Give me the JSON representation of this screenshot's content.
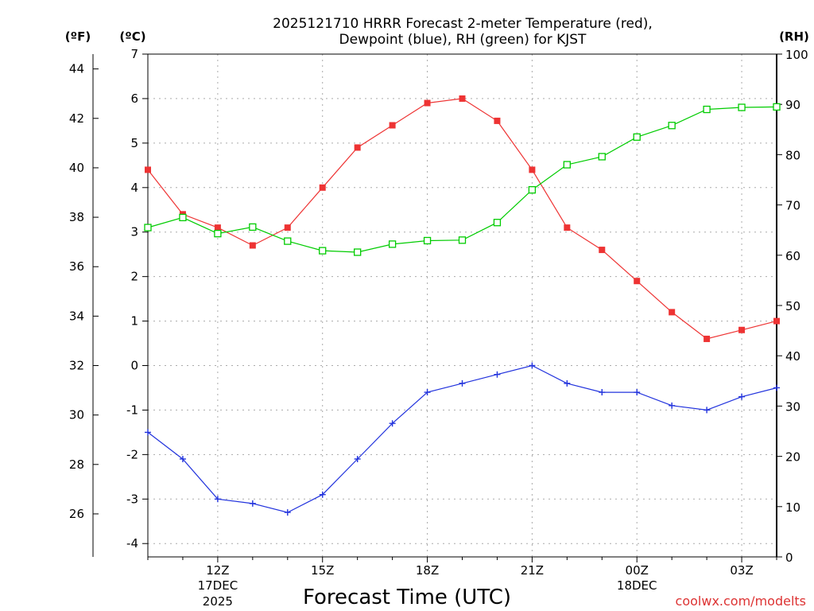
{
  "chart_data": {
    "type": "line",
    "title_line1": "2025121710 HRRR Forecast 2-meter Temperature (red),",
    "title_line2": "Dewpoint (blue), RH (green) for KJST",
    "units": {
      "fahrenheit": "(ºF)",
      "celsius": "(ºC)",
      "rh": "(RH)"
    },
    "xlabel": "Forecast Time (UTC)",
    "credit": "coolwx.com/modelts",
    "x_hours": [
      10,
      11,
      12,
      13,
      14,
      15,
      16,
      17,
      18,
      19,
      20,
      21,
      22,
      23,
      24,
      25,
      26,
      27,
      28
    ],
    "xlim": [
      10,
      28
    ],
    "x_ticks": [
      {
        "hour": 12,
        "label": "12Z",
        "sub1": "17DEC",
        "sub2": "2025"
      },
      {
        "hour": 15,
        "label": "15Z",
        "sub1": "",
        "sub2": ""
      },
      {
        "hour": 18,
        "label": "18Z",
        "sub1": "",
        "sub2": ""
      },
      {
        "hour": 21,
        "label": "21Z",
        "sub1": "",
        "sub2": ""
      },
      {
        "hour": 24,
        "label": "00Z",
        "sub1": "18DEC",
        "sub2": ""
      },
      {
        "hour": 27,
        "label": "03Z",
        "sub1": "",
        "sub2": ""
      }
    ],
    "ylim_c": [
      -4.3,
      7
    ],
    "y_ticks_c": [
      "-4",
      "-3",
      "-2",
      "-1",
      "0",
      "1",
      "2",
      "3",
      "4",
      "5",
      "6",
      "7"
    ],
    "y_ticks_f": [
      "26",
      "28",
      "30",
      "32",
      "34",
      "36",
      "38",
      "40",
      "42",
      "44"
    ],
    "ylim_rh": [
      0,
      100
    ],
    "y_ticks_rh": [
      "0",
      "10",
      "20",
      "30",
      "40",
      "50",
      "60",
      "70",
      "80",
      "90",
      "100"
    ],
    "series": [
      {
        "name": "2-meter Temperature",
        "color": "#ee3333",
        "axis": "celsius",
        "marker": "filled-square",
        "values": [
          4.4,
          3.4,
          3.1,
          2.7,
          3.1,
          4.0,
          4.9,
          5.4,
          5.9,
          6.0,
          5.5,
          4.4,
          3.1,
          2.6,
          1.9,
          1.2,
          0.6,
          0.8,
          1.0
        ]
      },
      {
        "name": "Dewpoint",
        "color": "#2233dd",
        "axis": "celsius",
        "marker": "plus",
        "values": [
          -1.5,
          -2.1,
          -3.0,
          -3.1,
          -3.3,
          -2.9,
          -2.1,
          -1.3,
          -0.6,
          -0.4,
          -0.2,
          0.0,
          -0.4,
          -0.6,
          -0.6,
          -0.9,
          -1.0,
          -0.7,
          -0.5
        ]
      },
      {
        "name": "RH",
        "color": "#00cc00",
        "axis": "rh",
        "marker": "open-square",
        "values": [
          65.5,
          67.5,
          64.3,
          65.6,
          62.8,
          60.9,
          60.6,
          62.2,
          62.9,
          63.0,
          66.5,
          73.0,
          78.0,
          79.6,
          83.5,
          85.8,
          89.0,
          89.4,
          89.5
        ]
      }
    ]
  }
}
